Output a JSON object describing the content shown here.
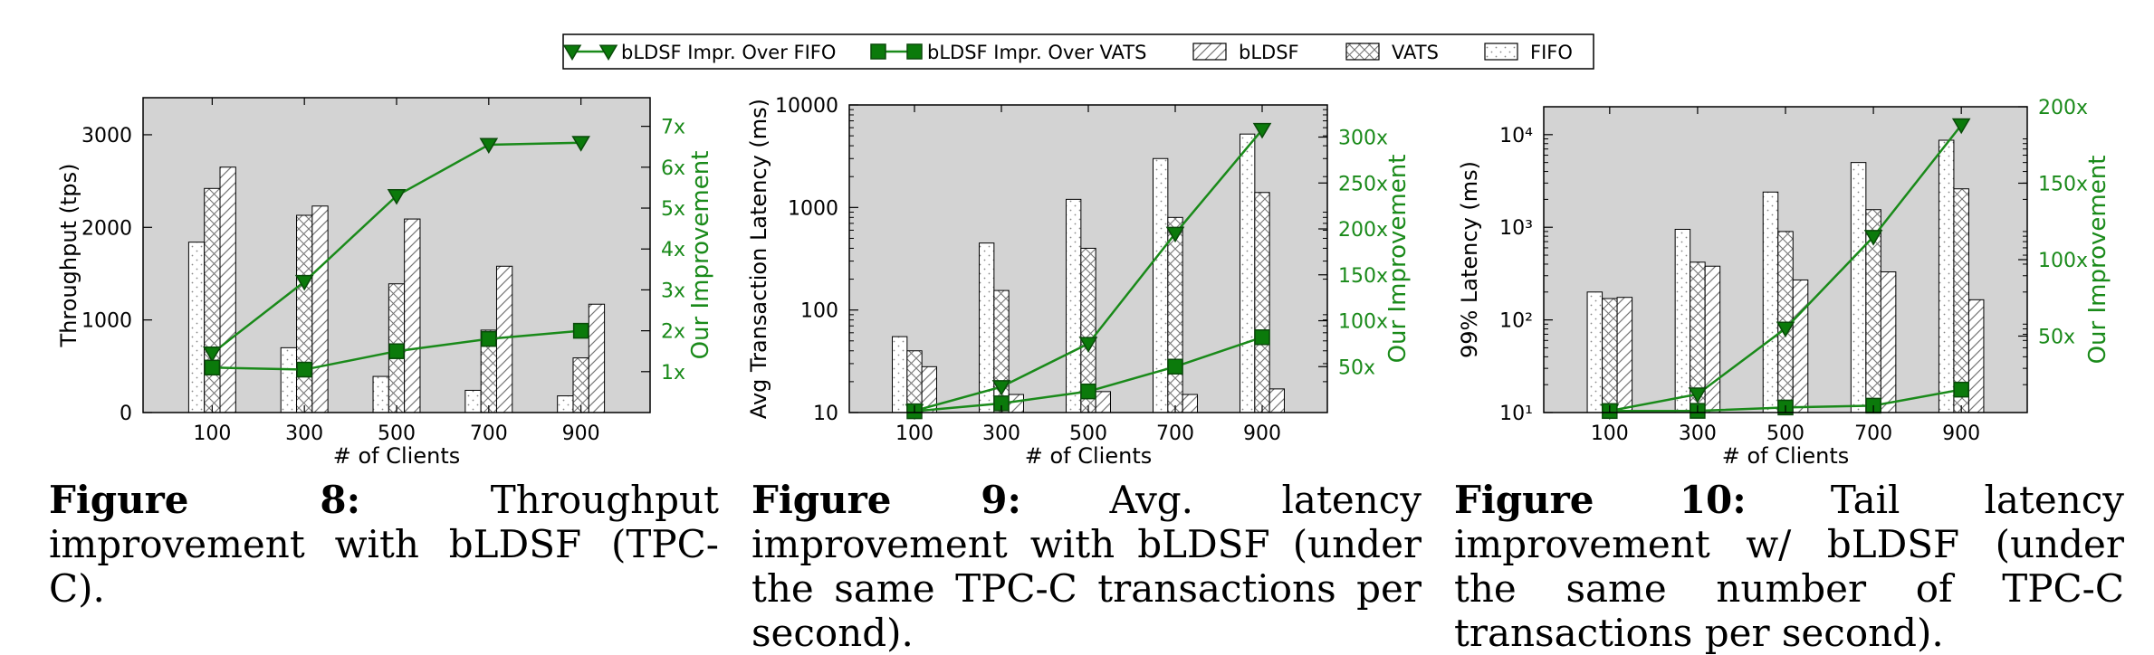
{
  "legend": [
    {
      "label": "bLDSF Impr. Over FIFO",
      "kind": "line-triangle"
    },
    {
      "label": "bLDSF Impr. Over VATS",
      "kind": "line-square"
    },
    {
      "label": "bLDSF",
      "kind": "bar-hatch"
    },
    {
      "label": "VATS",
      "kind": "bar-cross"
    },
    {
      "label": "FIFO",
      "kind": "bar-dots"
    }
  ],
  "colors": {
    "panel_bg": "#d3d3d3",
    "line": "#1a8a1a",
    "marker": "#0b7a0b",
    "marker_edge": "#0a4a0a",
    "bar_fill": "#ffffff",
    "axis": "#000000"
  },
  "captions": [
    {
      "label": "Figure 8:",
      "text": "Throughput improvement with bLDSF (TPC-C)."
    },
    {
      "label": "Figure 9:",
      "text": "Avg. latency improvement with bLDSF (under the same TPC-C transactions per second)."
    },
    {
      "label": "Figure 10:",
      "text": "Tail latency improvement w/ bLDSF (under the same number of TPC-C transactions per second)."
    }
  ],
  "chart_data": [
    {
      "type": "bar",
      "xlabel": "# of Clients",
      "ylabel": "Throughput (tps)",
      "y2label": "Our Improvement",
      "categories": [
        "100",
        "300",
        "500",
        "700",
        "900"
      ],
      "ylim": [
        0,
        3400
      ],
      "yscale": "linear",
      "yticks": [
        0,
        1000,
        2000,
        3000
      ],
      "ytick_labels": [
        "0",
        "1000",
        "2000",
        "3000"
      ],
      "y2lim": [
        0,
        7.7
      ],
      "y2ticks": [
        1,
        2,
        3,
        4,
        5,
        6,
        7
      ],
      "y2tick_labels": [
        "1x",
        "2x",
        "3x",
        "4x",
        "5x",
        "6x",
        "7x"
      ],
      "bar_series": [
        {
          "name": "FIFO",
          "values": [
            1840,
            700,
            390,
            240,
            180
          ]
        },
        {
          "name": "VATS",
          "values": [
            2420,
            2130,
            1390,
            890,
            590
          ]
        },
        {
          "name": "bLDSF",
          "values": [
            2650,
            2230,
            2090,
            1580,
            1170
          ]
        }
      ],
      "line_series": [
        {
          "name": "bLDSF Impr. Over FIFO",
          "values": [
            1.45,
            3.2,
            5.3,
            6.55,
            6.6
          ]
        },
        {
          "name": "bLDSF Impr. Over VATS",
          "values": [
            1.1,
            1.05,
            1.5,
            1.8,
            2.0
          ]
        }
      ],
      "grid": false
    },
    {
      "type": "bar",
      "xlabel": "# of Clients",
      "ylabel": "Avg Transaction Latency (ms)",
      "y2label": "Our Improvement",
      "categories": [
        "100",
        "300",
        "500",
        "700",
        "900"
      ],
      "ylim": [
        10,
        10000
      ],
      "yscale": "log",
      "yticks": [
        10,
        100,
        1000,
        10000
      ],
      "ytick_labels": [
        "10",
        "100",
        "1000",
        "10000"
      ],
      "y2lim": [
        0,
        335
      ],
      "y2ticks": [
        50,
        100,
        150,
        200,
        250,
        300
      ],
      "y2tick_labels": [
        "50x",
        "100x",
        "150x",
        "200x",
        "250x",
        "300x"
      ],
      "bar_series": [
        {
          "name": "FIFO",
          "values": [
            55,
            450,
            1200,
            3000,
            5200
          ]
        },
        {
          "name": "VATS",
          "values": [
            40,
            155,
            400,
            800,
            1400
          ]
        },
        {
          "name": "bLDSF",
          "values": [
            28,
            15,
            16,
            15,
            17
          ]
        }
      ],
      "line_series": [
        {
          "name": "bLDSF Impr. Over FIFO",
          "values": [
            1.9,
            28,
            75,
            195,
            308
          ]
        },
        {
          "name": "bLDSF Impr. Over VATS",
          "values": [
            1.4,
            10,
            23,
            50,
            82
          ]
        }
      ],
      "grid": false
    },
    {
      "type": "bar",
      "xlabel": "# of Clients",
      "ylabel": "99% Latency (ms)",
      "y2label": "Our Improvement",
      "categories": [
        "100",
        "300",
        "500",
        "700",
        "900"
      ],
      "ylim": [
        10,
        20000
      ],
      "yscale": "log",
      "yticks": [
        10,
        100,
        1000,
        10000
      ],
      "ytick_labels": [
        "10¹",
        "10²",
        "10³",
        "10⁴"
      ],
      "y2lim": [
        0,
        200
      ],
      "y2ticks": [
        50,
        100,
        150,
        200
      ],
      "y2tick_labels": [
        "50x",
        "100x",
        "150x",
        "200x"
      ],
      "bar_series": [
        {
          "name": "FIFO",
          "values": [
            200,
            950,
            2400,
            5000,
            8700
          ]
        },
        {
          "name": "VATS",
          "values": [
            170,
            420,
            900,
            1550,
            2600
          ]
        },
        {
          "name": "bLDSF",
          "values": [
            175,
            380,
            270,
            330,
            165
          ]
        }
      ],
      "line_series": [
        {
          "name": "bLDSF Impr. Over FIFO",
          "values": [
            1.1,
            12,
            55,
            115,
            188
          ]
        },
        {
          "name": "bLDSF Impr. Over VATS",
          "values": [
            1.0,
            1.1,
            3.3,
            4.5,
            15
          ]
        }
      ],
      "grid": false
    }
  ]
}
